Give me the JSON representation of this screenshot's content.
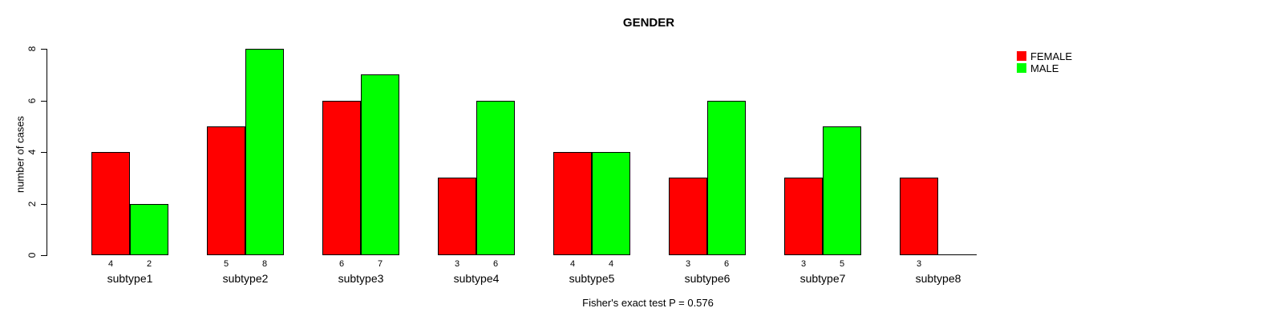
{
  "title": "GENDER",
  "footnote": "Fisher's exact test P = 0.576",
  "chart_data": {
    "type": "bar",
    "title": "GENDER",
    "categories": [
      "subtype1",
      "subtype2",
      "subtype3",
      "subtype4",
      "subtype5",
      "subtype6",
      "subtype7",
      "subtype8"
    ],
    "series": [
      {
        "name": "FEMALE",
        "color": "#ff0000",
        "values": [
          4,
          5,
          6,
          3,
          4,
          3,
          3,
          3
        ]
      },
      {
        "name": "MALE",
        "color": "#00ff00",
        "values": [
          2,
          8,
          7,
          6,
          4,
          6,
          5,
          0
        ]
      }
    ],
    "xlabel": "",
    "ylabel": "number of cases",
    "ylim": [
      0,
      8
    ],
    "yticks": [
      0,
      2,
      4,
      6,
      8
    ],
    "grid": false,
    "legend_position": "top-right",
    "bar_value_labels_shown": true,
    "annotation": "Fisher's exact test P = 0.576"
  }
}
